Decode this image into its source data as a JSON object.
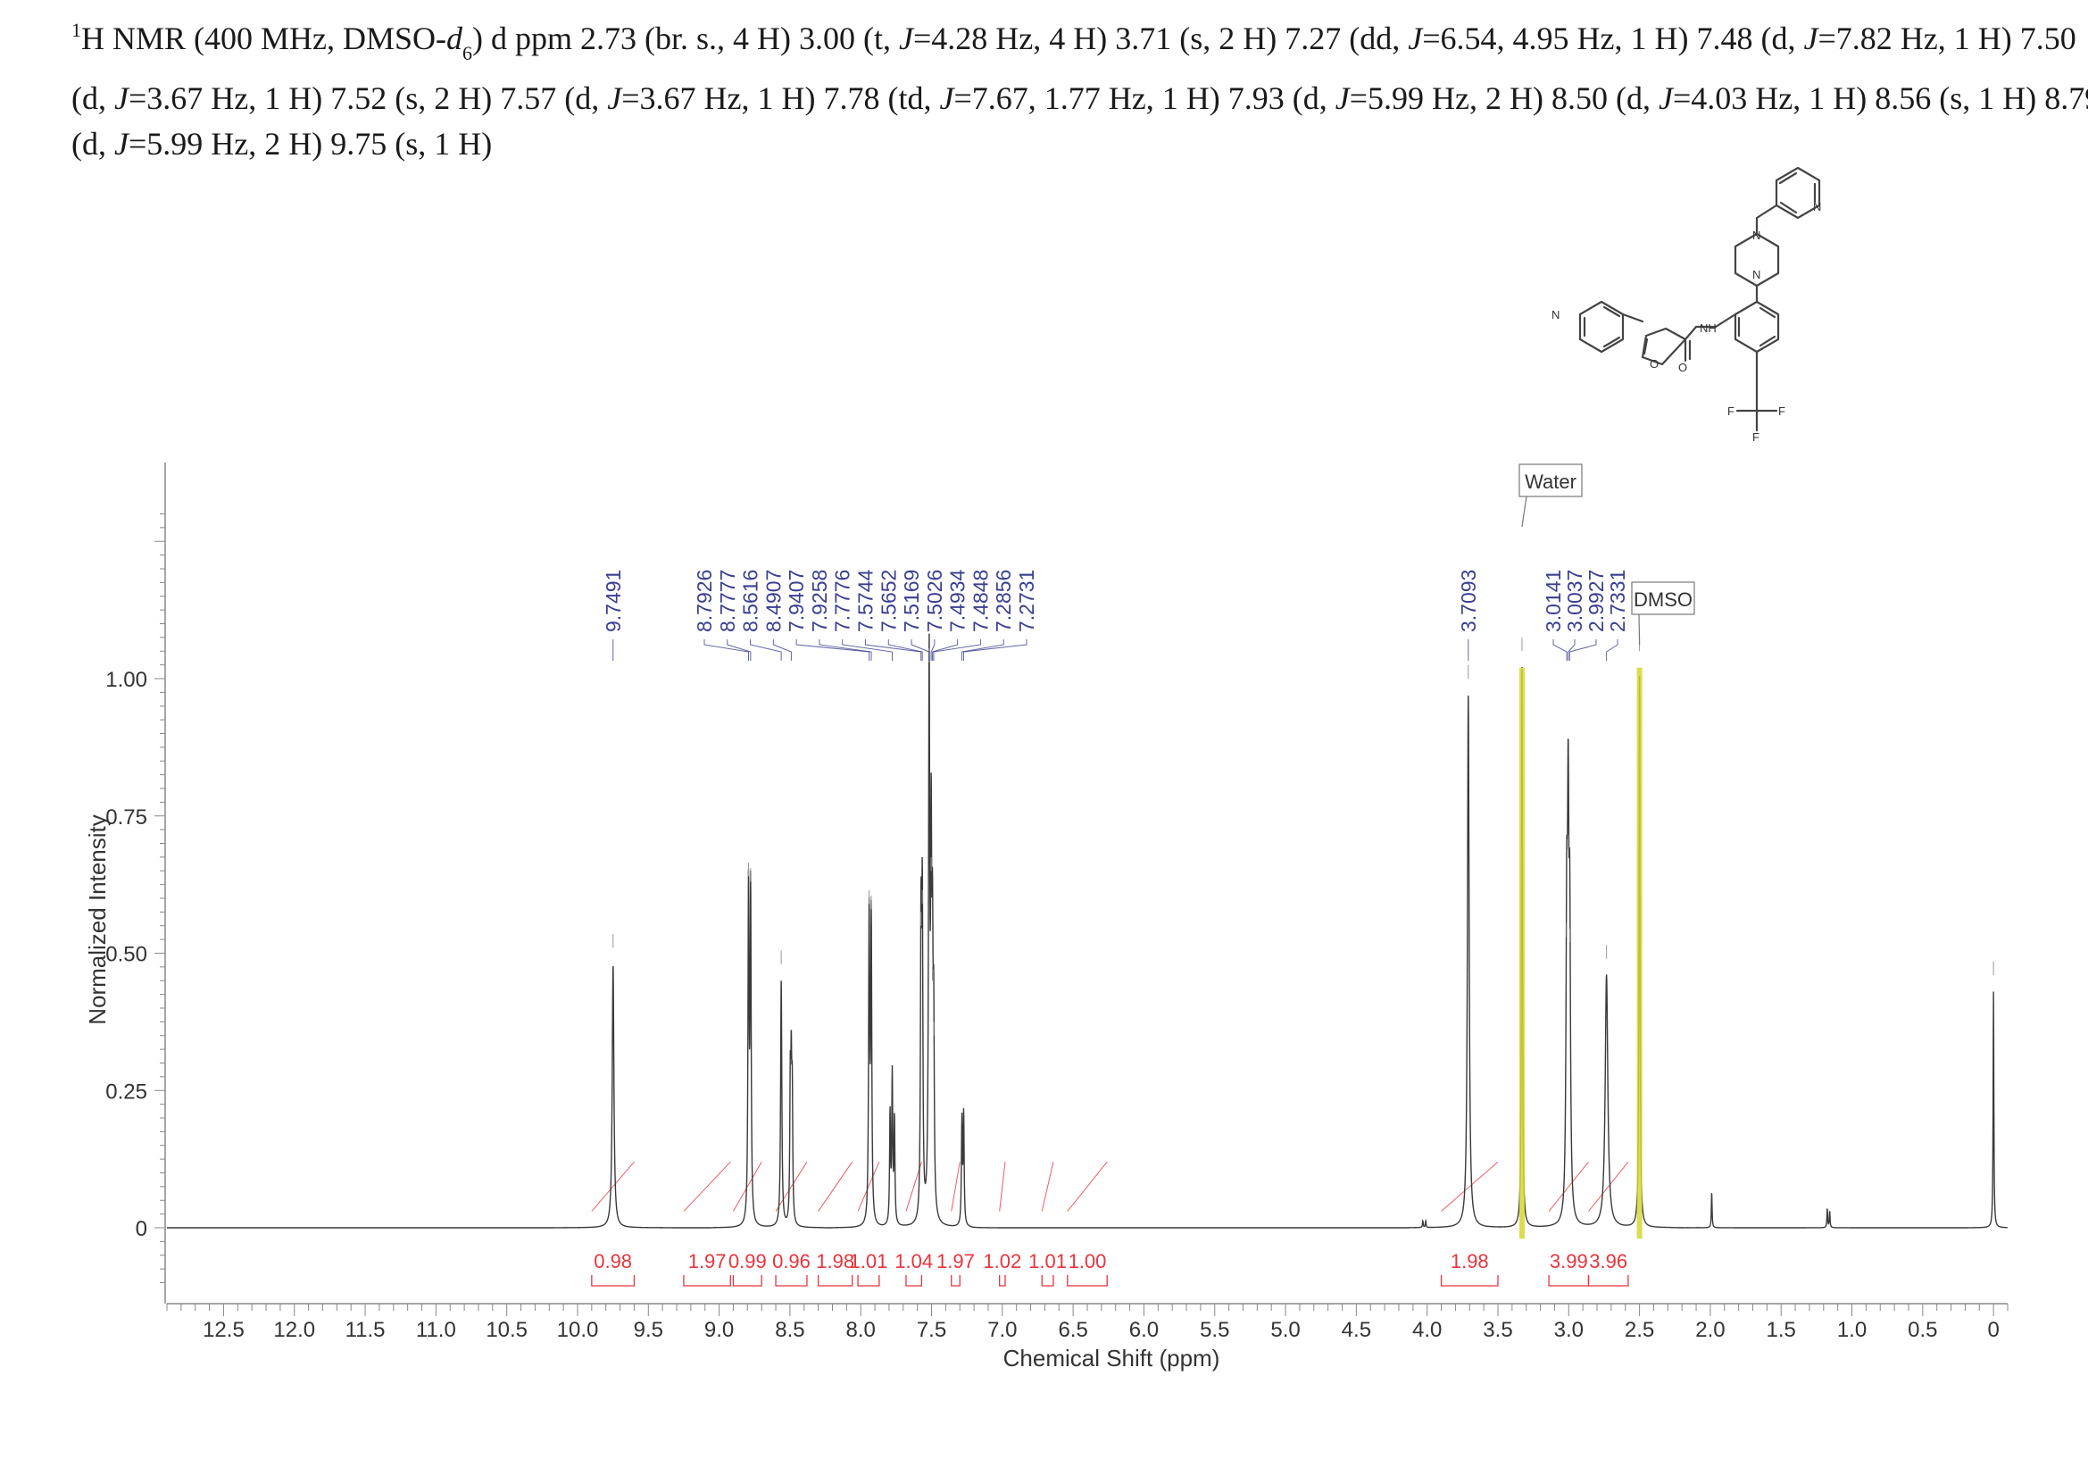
{
  "header": {
    "line1": {
      "prefix_sup": "1",
      "text_a": "H NMR (400 MHz, DMSO-",
      "italic_d": "d",
      "sub6": "6",
      "text_b": ") d ppm 2.73 (br. s., 4 H) 3.00 (t, ",
      "j1": "J",
      "text_c": "=4.28 Hz, 4 H) 3.71 (s, 2 H) 7.27 (dd, ",
      "j2": "J",
      "text_d": "=6.54, 4.95 Hz, 1 H) 7.48 (d, ",
      "j3": "J",
      "text_e": "=7.82 Hz, 1 H) 7.50"
    },
    "line2": {
      "text_a": "(d, ",
      "j1": "J",
      "text_b": "=3.67 Hz, 1 H) 7.52 (s, 2 H) 7.57 (d, ",
      "j2": "J",
      "text_c": "=3.67 Hz, 1 H) 7.78 (td, ",
      "j3": "J",
      "text_d": "=7.67, 1.77 Hz, 1 H) 7.93 (d, ",
      "j4": "J",
      "text_e": "=5.99 Hz, 2 H) 8.50 (d, ",
      "j5": "J",
      "text_f": "=4.03 Hz, 1 H) 8.56 (s, 1 H) 8.79"
    },
    "line3": {
      "text_a": "(d, ",
      "j1": "J",
      "text_b": "=5.99 Hz, 2 H) 9.75 (s, 1 H)"
    }
  },
  "molecule": {
    "atom_labels": [
      "N",
      "N",
      "N",
      "N",
      "O",
      "NH",
      "O",
      "F",
      "F",
      "F"
    ]
  },
  "chart_data": {
    "type": "line",
    "xlabel": "Chemical Shift (ppm)",
    "ylabel": "Normalized Intensity",
    "xlim": [
      12.9,
      -0.1
    ],
    "ylim": [
      -0.12,
      1.4
    ],
    "x_reversed": true,
    "x_ticks": [
      "12.5",
      "12.0",
      "11.5",
      "11.0",
      "10.5",
      "10.0",
      "9.5",
      "9.0",
      "8.5",
      "8.0",
      "7.5",
      "7.0",
      "6.5",
      "6.0",
      "5.5",
      "5.0",
      "4.5",
      "4.0",
      "3.5",
      "3.0",
      "2.5",
      "2.0",
      "1.5",
      "1.0",
      "0.5",
      "0"
    ],
    "x_tick_values": [
      12.5,
      12.0,
      11.5,
      11.0,
      10.5,
      10.0,
      9.5,
      9.0,
      8.5,
      8.0,
      7.5,
      7.0,
      6.5,
      6.0,
      5.5,
      5.0,
      4.5,
      4.0,
      3.5,
      3.0,
      2.5,
      2.0,
      1.5,
      1.0,
      0.5,
      0.0
    ],
    "y_ticks": [
      "0",
      "0.25",
      "0.50",
      "0.75",
      "1.00"
    ],
    "y_tick_values": [
      0,
      0.25,
      0.5,
      0.75,
      1.0
    ],
    "peaks": [
      {
        "ppm": 9.7491,
        "height": 0.48,
        "width": 0.007
      },
      {
        "ppm": 8.7926,
        "height": 0.61,
        "width": 0.0045
      },
      {
        "ppm": 8.7777,
        "height": 0.6,
        "width": 0.0045
      },
      {
        "ppm": 8.5616,
        "height": 0.45,
        "width": 0.005
      },
      {
        "ppm": 8.4977,
        "height": 0.24,
        "width": 0.004
      },
      {
        "ppm": 8.4907,
        "height": 0.25,
        "width": 0.004
      },
      {
        "ppm": 8.4837,
        "height": 0.22,
        "width": 0.004
      },
      {
        "ppm": 7.9407,
        "height": 0.56,
        "width": 0.0045
      },
      {
        "ppm": 7.9258,
        "height": 0.55,
        "width": 0.0045
      },
      {
        "ppm": 7.7929,
        "height": 0.2,
        "width": 0.004
      },
      {
        "ppm": 7.7776,
        "height": 0.27,
        "width": 0.004
      },
      {
        "ppm": 7.7619,
        "height": 0.19,
        "width": 0.004
      },
      {
        "ppm": 7.5744,
        "height": 0.52,
        "width": 0.0045
      },
      {
        "ppm": 7.5652,
        "height": 0.56,
        "width": 0.0045
      },
      {
        "ppm": 7.5169,
        "height": 1.0,
        "width": 0.005
      },
      {
        "ppm": 7.5026,
        "height": 0.62,
        "width": 0.0045
      },
      {
        "ppm": 7.4934,
        "height": 0.42,
        "width": 0.0045
      },
      {
        "ppm": 7.4848,
        "height": 0.32,
        "width": 0.0045
      },
      {
        "ppm": 7.2856,
        "height": 0.19,
        "width": 0.004
      },
      {
        "ppm": 7.2731,
        "height": 0.2,
        "width": 0.004
      },
      {
        "ppm": 3.7093,
        "height": 0.97,
        "width": 0.007
      },
      {
        "ppm": 3.0141,
        "height": 0.5,
        "width": 0.006
      },
      {
        "ppm": 3.0037,
        "height": 0.66,
        "width": 0.006
      },
      {
        "ppm": 2.9927,
        "height": 0.49,
        "width": 0.006
      },
      {
        "ppm": 2.7331,
        "height": 0.46,
        "width": 0.011
      },
      {
        "ppm": 2.5,
        "height": 1.02,
        "width": 0.004
      },
      {
        "ppm": 3.33,
        "height": 1.02,
        "width": 0.004
      },
      {
        "ppm": 1.99,
        "height": 0.065,
        "width": 0.003
      },
      {
        "ppm": 1.174,
        "height": 0.035,
        "width": 0.003
      },
      {
        "ppm": 1.157,
        "height": 0.03,
        "width": 0.003
      },
      {
        "ppm": 4.03,
        "height": 0.012,
        "width": 0.003
      },
      {
        "ppm": 4.01,
        "height": 0.012,
        "width": 0.003
      },
      {
        "ppm": 0.0,
        "height": 0.43,
        "width": 0.003
      }
    ],
    "peak_labels": {
      "group1": [
        "9.7491"
      ],
      "group2": [
        "8.7926",
        "8.7777",
        "8.5616",
        "8.4907",
        "7.9407",
        "7.9258",
        "7.7776",
        "7.5744",
        "7.5652",
        "7.5169",
        "7.5026",
        "7.4934",
        "7.4848",
        "7.2856",
        "7.2731"
      ],
      "group3": [
        "3.7093"
      ],
      "group4": [
        "3.0141",
        "3.0037",
        "2.9927",
        "2.7331"
      ]
    },
    "integrals": [
      {
        "value": "0.98",
        "from": 9.9,
        "to": 9.6
      },
      {
        "value": "1.97",
        "from": 9.25,
        "to": 8.92
      },
      {
        "value": "0.99",
        "from": 8.9,
        "to": 8.7
      },
      {
        "value": "0.96",
        "from": 8.6,
        "to": 8.38
      },
      {
        "value": "1.98",
        "from": 8.3,
        "to": 8.06
      },
      {
        "value": "1.01",
        "from": 8.02,
        "to": 7.87
      },
      {
        "value": "1.04",
        "from": 7.68,
        "to": 7.57
      },
      {
        "value": "1.97",
        "from": 7.36,
        "to": 7.3
      },
      {
        "value": "1.02",
        "from": 7.02,
        "to": 6.98
      },
      {
        "value": "1.01",
        "from": 6.72,
        "to": 6.64
      },
      {
        "value": "1.00",
        "from": 6.54,
        "to": 6.26
      },
      {
        "value": "1.98",
        "from": 3.9,
        "to": 3.5
      },
      {
        "value": "3.99",
        "from": 3.14,
        "to": 2.86
      },
      {
        "value": "3.96",
        "from": 2.86,
        "to": 2.58
      }
    ],
    "solvent_labels": [
      {
        "text": "Water",
        "ppm": 3.33
      },
      {
        "text": "DMSO",
        "ppm": 2.5
      }
    ],
    "colors": {
      "spectrum": "#3a3a3a",
      "peak_label": "#3b3f8f",
      "integral": "#e8343c",
      "solvent_line": "#d6d832",
      "axis": "#666666"
    }
  }
}
